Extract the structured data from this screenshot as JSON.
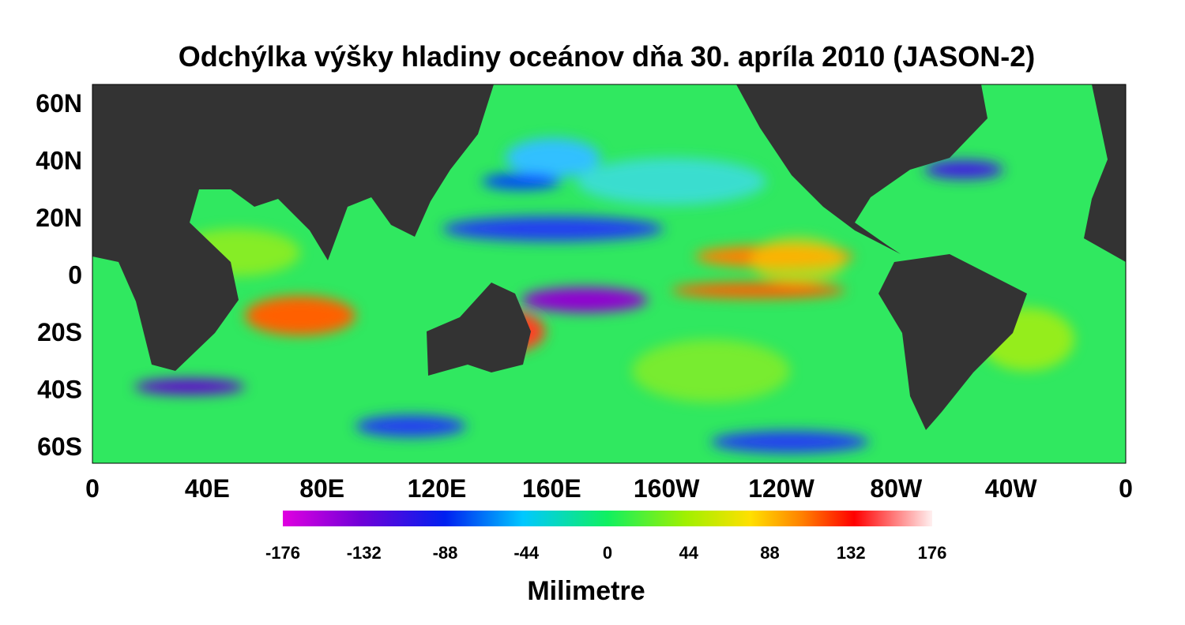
{
  "title": "Odchýlka výšky hladiny oceánov dňa 30. apríla 2010 (JASON-2)",
  "map": {
    "lat_labels": [
      "60N",
      "40N",
      "20N",
      "0",
      "20S",
      "40S",
      "60S"
    ],
    "lon_labels": [
      "0",
      "40E",
      "80E",
      "120E",
      "160E",
      "160W",
      "120W",
      "80W",
      "40W",
      "0"
    ]
  },
  "colorbar": {
    "ticks": [
      -176,
      -132,
      -88,
      -44,
      0,
      44,
      88,
      132,
      176
    ],
    "label": "Milimetre"
  }
}
